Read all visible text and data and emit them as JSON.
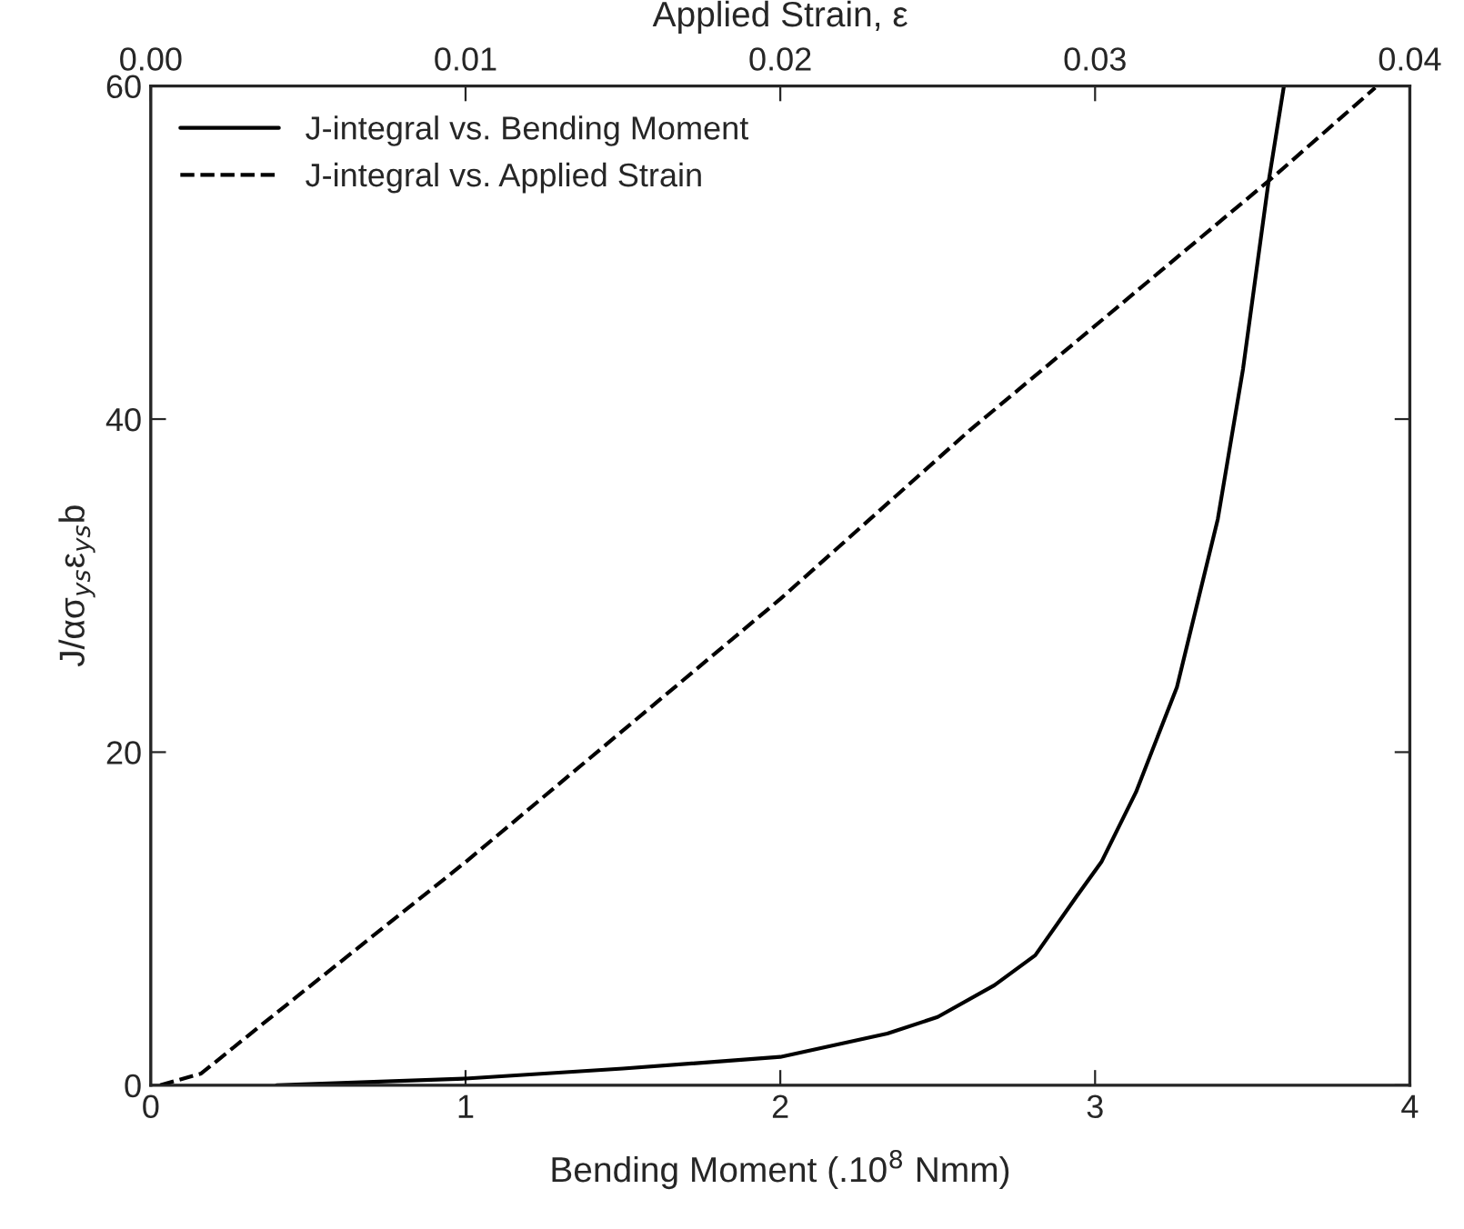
{
  "chart_data": {
    "type": "line",
    "xlabel": "Bending Moment (.10$^{8}$ Nmm)",
    "x2label": "Applied Strain, ε",
    "ylabel": "J/ασ$_{ys}$ε$_{ys}$b",
    "xlim": [
      0,
      4
    ],
    "xticks": [
      0,
      1,
      2,
      3,
      4
    ],
    "x2lim": [
      0,
      0.04
    ],
    "x2ticks": [
      {
        "value": 0,
        "label": "0.00"
      },
      {
        "value": 0.01,
        "label": "0.01"
      },
      {
        "value": 0.02,
        "label": "0.02"
      },
      {
        "value": 0.03,
        "label": "0.03"
      },
      {
        "value": 0.04,
        "label": "0.04"
      }
    ],
    "ylim": [
      0,
      60
    ],
    "yticks": [
      0,
      20,
      40,
      60
    ],
    "grid": false,
    "legend": "top left",
    "series": [
      {
        "name": "J-integral vs. Bending Moment",
        "color": "#000000",
        "line_style": "solid",
        "x": [
          0.4,
          1.0,
          1.5,
          2.0,
          2.34,
          2.5,
          2.68,
          2.81,
          2.94,
          3.02,
          3.13,
          3.26,
          3.39,
          3.47,
          3.55,
          3.6
        ],
        "values": [
          0,
          0.4,
          1.0,
          1.7,
          3.1,
          4.1,
          6.0,
          7.8,
          11.3,
          13.4,
          17.6,
          23.9,
          34,
          43,
          54.1,
          60
        ]
      },
      {
        "name": "J-integral vs. Applied Strain",
        "color": "#000000",
        "line_style": "dashed",
        "axis": "x2",
        "x": [
          0.0003,
          0.0016,
          0.0037,
          0.01,
          0.02,
          0.026,
          0.03,
          0.0357,
          0.0389
        ],
        "values": [
          0,
          0.7,
          3.9,
          13.4,
          29.2,
          39.3,
          45.6,
          54.6,
          59.9
        ]
      }
    ]
  }
}
